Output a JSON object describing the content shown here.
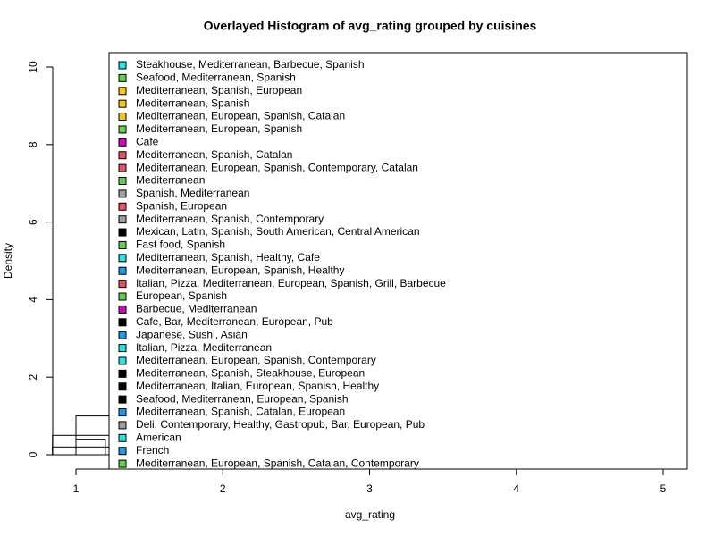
{
  "chart_data": {
    "type": "histogram",
    "title": "Overlayed Histogram of avg_rating grouped by cuisines",
    "xlabel": "avg_rating",
    "ylabel": "Density",
    "xlim": [
      1,
      5
    ],
    "xticks": [
      1,
      2,
      3,
      4,
      5
    ],
    "ylim": [
      0,
      10
    ],
    "yticks": [
      0,
      2,
      4,
      6,
      8,
      10
    ],
    "histograms": [
      {
        "bins": [
          0.84,
          1.25
        ],
        "values": [
          0.5
        ]
      },
      {
        "bins": [
          1.0,
          1.25
        ],
        "values": [
          1.0
        ]
      },
      {
        "bins": [
          1.0,
          1.2
        ],
        "values": [
          0.4
        ]
      },
      {
        "bins": [
          0.84,
          1.25
        ],
        "values": [
          0.2
        ]
      }
    ],
    "legend": [
      {
        "name": "Steakhouse, Mediterranean, Barbecue, Spanish",
        "color": "#28E2E5"
      },
      {
        "name": "Seafood, Mediterranean, Spanish",
        "color": "#61D04F"
      },
      {
        "name": "Mediterranean, Spanish, European",
        "color": "#F5C710"
      },
      {
        "name": "Mediterranean, Spanish",
        "color": "#F5C710"
      },
      {
        "name": "Mediterranean, European, Spanish, Catalan",
        "color": "#F5C710"
      },
      {
        "name": "Mediterranean, European, Spanish",
        "color": "#61D04F"
      },
      {
        "name": "Cafe",
        "color": "#CD0BBC"
      },
      {
        "name": "Mediterranean, Spanish, Catalan",
        "color": "#DF536B"
      },
      {
        "name": "Mediterranean, European, Spanish, Contemporary, Catalan",
        "color": "#DF536B"
      },
      {
        "name": "Mediterranean",
        "color": "#61D04F"
      },
      {
        "name": "Spanish, Mediterranean",
        "color": "#9E9E9E"
      },
      {
        "name": "Spanish, European",
        "color": "#DF536B"
      },
      {
        "name": "Mediterranean, Spanish, Contemporary",
        "color": "#9E9E9E"
      },
      {
        "name": "Mexican, Latin, Spanish, South American, Central American",
        "color": "#000000"
      },
      {
        "name": "Fast food, Spanish",
        "color": "#61D04F"
      },
      {
        "name": "Mediterranean, Spanish, Healthy, Cafe",
        "color": "#28E2E5"
      },
      {
        "name": "Mediterranean, European, Spanish, Healthy",
        "color": "#2297E6"
      },
      {
        "name": "Italian, Pizza, Mediterranean, European, Spanish, Grill, Barbecue",
        "color": "#DF536B"
      },
      {
        "name": "European, Spanish",
        "color": "#61D04F"
      },
      {
        "name": "Barbecue, Mediterranean",
        "color": "#CD0BBC"
      },
      {
        "name": "Cafe, Bar, Mediterranean, European, Pub",
        "color": "#000000"
      },
      {
        "name": "Japanese, Sushi, Asian",
        "color": "#2297E6"
      },
      {
        "name": "Italian, Pizza, Mediterranean",
        "color": "#28E2E5"
      },
      {
        "name": "Mediterranean, European, Spanish, Contemporary",
        "color": "#28E2E5"
      },
      {
        "name": "Mediterranean, Spanish, Steakhouse, European",
        "color": "#000000"
      },
      {
        "name": "Mediterranean, Italian, European, Spanish, Healthy",
        "color": "#000000"
      },
      {
        "name": "Seafood, Mediterranean, European, Spanish",
        "color": "#000000"
      },
      {
        "name": "Mediterranean, Spanish, Catalan, European",
        "color": "#2297E6"
      },
      {
        "name": "Deli, Contemporary, Healthy, Gastropub, Bar, European, Pub",
        "color": "#9E9E9E"
      },
      {
        "name": "American",
        "color": "#28E2E5"
      },
      {
        "name": "French",
        "color": "#2297E6"
      },
      {
        "name": "Mediterranean, European, Spanish, Catalan, Contemporary",
        "color": "#61D04F"
      }
    ]
  }
}
